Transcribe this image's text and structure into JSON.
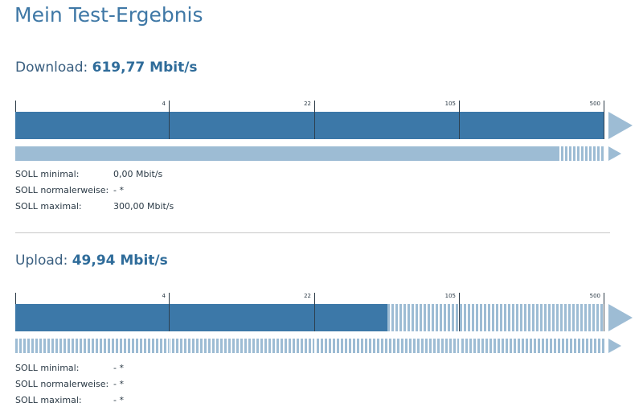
{
  "page": {
    "title": "Mein Test-Ergebnis"
  },
  "download": {
    "label": "Download:",
    "value": "619,77 Mbit/s",
    "main_fill_fraction": 1.0,
    "secondary_fill_fraction": 0.92,
    "scale_labels": [
      "4",
      "22",
      "105",
      "500"
    ],
    "soll": [
      {
        "label": "SOLL minimal:",
        "value": "0,00 Mbit/s"
      },
      {
        "label": "SOLL normalerweise:",
        "value": "- *"
      },
      {
        "label": "SOLL maximal:",
        "value": "300,00 Mbit/s"
      }
    ]
  },
  "upload": {
    "label": "Upload:",
    "value": "49,94 Mbit/s",
    "main_fill_fraction": 0.632,
    "secondary_fill_fraction": 0.0,
    "scale_labels": [
      "4",
      "22",
      "105",
      "500"
    ],
    "soll": [
      {
        "label": "SOLL minimal:",
        "value": "- *"
      },
      {
        "label": "SOLL normalerweise:",
        "value": "- *"
      },
      {
        "label": "SOLL maximal:",
        "value": "- *"
      }
    ]
  },
  "colors": {
    "primary": "#3c78a8",
    "secondary": "#9dbcd4",
    "title": "#3f78a6"
  }
}
